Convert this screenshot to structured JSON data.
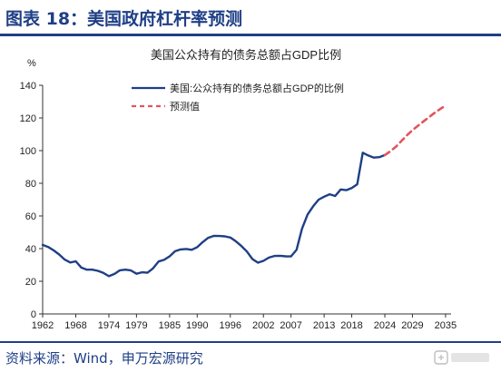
{
  "header": {
    "title": "图表 18：美国政府杠杆率预测"
  },
  "footer": {
    "source": "资料来源：Wind，申万宏源研究"
  },
  "colors": {
    "accent": "#1f3f86",
    "series_actual": "#1f3f86",
    "series_forecast": "#e0565b"
  },
  "chart_data": {
    "type": "line",
    "title": "美国公众持有的债务总额占GDP比例",
    "ylabel": "%",
    "xlim": [
      1962,
      2036
    ],
    "ylim": [
      0,
      140
    ],
    "y_ticks": [
      0,
      20,
      40,
      60,
      80,
      100,
      120,
      140
    ],
    "x_ticks": [
      "1962",
      "1968",
      "1974",
      "1979",
      "1985",
      "1990",
      "1996",
      "2002",
      "2007",
      "2013",
      "2018",
      "2024",
      "2029",
      "2035"
    ],
    "grid": false,
    "legend_position": "top-left",
    "series": [
      {
        "name": "美国:公众持有的债务总额占GDP的比例",
        "style": "solid",
        "x": [
          1962,
          1963,
          1964,
          1965,
          1966,
          1967,
          1968,
          1969,
          1970,
          1971,
          1972,
          1973,
          1974,
          1975,
          1976,
          1977,
          1978,
          1979,
          1980,
          1981,
          1982,
          1983,
          1984,
          1985,
          1986,
          1987,
          1988,
          1989,
          1990,
          1991,
          1992,
          1993,
          1994,
          1995,
          1996,
          1997,
          1998,
          1999,
          2000,
          2001,
          2002,
          2003,
          2004,
          2005,
          2006,
          2007,
          2008,
          2009,
          2010,
          2011,
          2012,
          2013,
          2014,
          2015,
          2016,
          2017,
          2018,
          2019,
          2020,
          2021,
          2022,
          2023,
          2024
        ],
        "values": [
          42.3,
          41.0,
          38.9,
          36.4,
          33.3,
          31.5,
          32.2,
          28.4,
          27.1,
          27.1,
          26.4,
          25.1,
          23.1,
          24.5,
          26.7,
          27.1,
          26.6,
          24.6,
          25.5,
          25.2,
          27.9,
          32.1,
          33.1,
          35.3,
          38.4,
          39.5,
          39.8,
          39.3,
          40.9,
          44.0,
          46.6,
          47.8,
          47.7,
          47.5,
          46.8,
          44.5,
          41.6,
          38.2,
          33.6,
          31.4,
          32.5,
          34.5,
          35.5,
          35.6,
          35.3,
          35.2,
          39.2,
          52.3,
          60.9,
          65.9,
          70.0,
          71.8,
          73.3,
          72.2,
          76.2,
          75.8,
          77.1,
          79.4,
          98.7,
          97.0,
          95.7,
          96.0,
          97.3
        ]
      },
      {
        "name": "预测值",
        "style": "dashed",
        "x": [
          2024,
          2025,
          2026,
          2027,
          2028,
          2029,
          2030,
          2031,
          2032,
          2033,
          2034,
          2035
        ],
        "values": [
          97.3,
          99.6,
          102.4,
          105.9,
          109.4,
          112.5,
          115.2,
          117.9,
          120.5,
          123.1,
          125.4,
          127.6
        ]
      }
    ]
  }
}
